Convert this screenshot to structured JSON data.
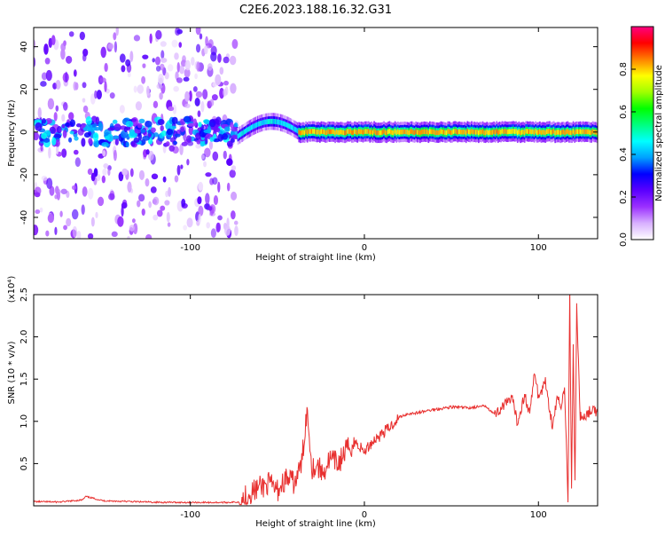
{
  "page": {
    "title": "C2E6.2023.188.16.32.G31"
  },
  "chart_data": [
    {
      "type": "heatmap",
      "title": "C2E6.2023.188.16.32.G31",
      "xlabel": "Height of straight line (km)",
      "ylabel": "Frequency (Hz)",
      "xlim": [
        -190,
        134
      ],
      "ylim": [
        -50,
        49
      ],
      "xticks": [
        -100,
        0,
        100
      ],
      "xtick_labels": [
        "-100",
        "0",
        "100"
      ],
      "yticks": [
        -40,
        -20,
        0,
        20,
        40
      ],
      "ytick_labels": [
        "-40",
        "-20",
        "0",
        "20",
        "40"
      ],
      "grid": false,
      "colorbar": {
        "label": "Normalized spectral amplitude",
        "range": [
          0,
          1
        ],
        "ticks": [
          0.0,
          0.2,
          0.4,
          0.6,
          0.8
        ],
        "tick_labels": [
          "0.0",
          "0.2",
          "0.4",
          "0.6",
          "0.8"
        ],
        "colormap": [
          "#ffffff",
          "#d8b0ff",
          "#9b30ff",
          "#5a00ff",
          "#0000ff",
          "#00a0ff",
          "#00ffff",
          "#00ff80",
          "#00ff00",
          "#a0ff00",
          "#ffff00",
          "#ff8000",
          "#ff0000",
          "#ff0080"
        ]
      },
      "regions": [
        {
          "name": "noise",
          "x": [
            -190,
            -73
          ],
          "freq_span": [
            -50,
            49
          ],
          "amplitude": 0.1
        },
        {
          "name": "noisy-center",
          "x": [
            -190,
            -73
          ],
          "center_freq": 0,
          "half_width": 6,
          "amplitude": 0.25
        },
        {
          "name": "emerging-line",
          "x": [
            -73,
            -38
          ],
          "center_freq": [
            -2,
            5
          ],
          "half_width": 4,
          "amplitude": 0.45
        },
        {
          "name": "strong-line",
          "x": [
            -38,
            134
          ],
          "center_freq": 0,
          "half_width": 2.5,
          "amplitude": 0.9
        }
      ]
    },
    {
      "type": "line",
      "xlabel": "Height of straight line (km)",
      "ylabel": "SNR (10 * v/v)",
      "y_multiplier": "(x10⁴)",
      "xlim": [
        -190,
        134
      ],
      "ylim": [
        0,
        25000
      ],
      "xticks": [
        -100,
        0,
        100
      ],
      "xtick_labels": [
        "-100",
        "0",
        "100"
      ],
      "yticks": [
        5000,
        10000,
        15000,
        20000,
        25000
      ],
      "ytick_labels": [
        "0.5",
        "1.0",
        "1.5",
        "2.0",
        "2.5"
      ],
      "grid": false,
      "series_color": "#e8302f",
      "x": [
        -190,
        -175,
        -162,
        -160,
        -150,
        -120,
        -100,
        -80,
        -72,
        -66,
        -60,
        -55,
        -50,
        -45,
        -40,
        -36,
        -33,
        -30,
        -27,
        -24,
        -20,
        -15,
        -10,
        -5,
        0,
        5,
        10,
        15,
        20,
        25,
        30,
        40,
        50,
        60,
        70,
        75,
        80,
        85,
        88,
        92,
        95,
        98,
        100,
        104,
        108,
        111,
        113,
        115,
        117,
        118,
        119,
        120,
        121,
        122,
        124,
        126,
        130,
        134
      ],
      "values": [
        500,
        450,
        700,
        1100,
        600,
        420,
        400,
        400,
        450,
        1500,
        2200,
        2600,
        1800,
        3200,
        2700,
        5000,
        11500,
        4500,
        4800,
        3800,
        5500,
        5000,
        6700,
        7500,
        6400,
        7700,
        8500,
        9400,
        10500,
        10900,
        11000,
        11400,
        11700,
        11600,
        11800,
        10800,
        11900,
        12600,
        9800,
        13200,
        10900,
        16000,
        12800,
        14700,
        9500,
        13000,
        11200,
        14300,
        900,
        25500,
        1600,
        19000,
        2400,
        23500,
        10500,
        10500,
        11300,
        11000
      ]
    }
  ]
}
